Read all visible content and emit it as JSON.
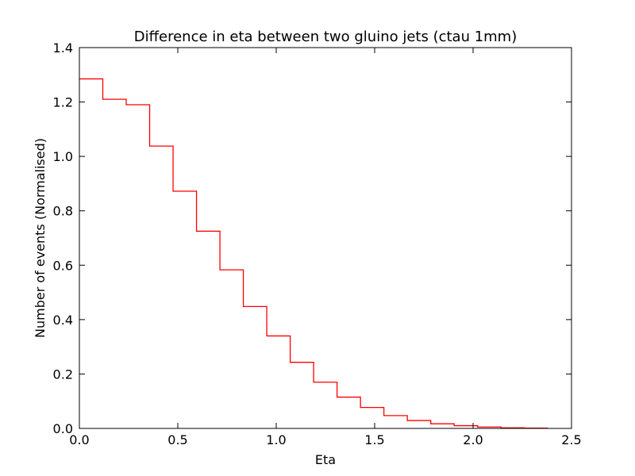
{
  "chart_data": {
    "type": "histogram-step",
    "title": "Difference in eta between two gluino jets (ctau 1mm)",
    "xlabel": "Eta",
    "ylabel": "Number of events (Normalised)",
    "xlim": [
      0.0,
      2.5
    ],
    "ylim": [
      0.0,
      1.4
    ],
    "xticks": [
      0.0,
      0.5,
      1.0,
      1.5,
      2.0,
      2.5
    ],
    "xtick_labels": [
      "0.0",
      "0.5",
      "1.0",
      "1.5",
      "2.0",
      "2.5"
    ],
    "yticks": [
      0.0,
      0.2,
      0.4,
      0.6,
      0.8,
      1.0,
      1.2,
      1.4
    ],
    "ytick_labels": [
      "0.0",
      "0.2",
      "0.4",
      "0.6",
      "0.8",
      "1.0",
      "1.2",
      "1.4"
    ],
    "grid": false,
    "series": [
      {
        "color": "#ff0000",
        "bin_edges": [
          0.0,
          0.119,
          0.238,
          0.357,
          0.476,
          0.595,
          0.714,
          0.833,
          0.952,
          1.071,
          1.19,
          1.309,
          1.428,
          1.547,
          1.666,
          1.785,
          1.904,
          2.023,
          2.142,
          2.261,
          2.38
        ],
        "values": [
          1.285,
          1.21,
          1.19,
          1.038,
          0.872,
          0.725,
          0.583,
          0.448,
          0.34,
          0.243,
          0.17,
          0.115,
          0.077,
          0.047,
          0.029,
          0.017,
          0.01,
          0.005,
          0.002,
          0.001
        ]
      }
    ]
  }
}
